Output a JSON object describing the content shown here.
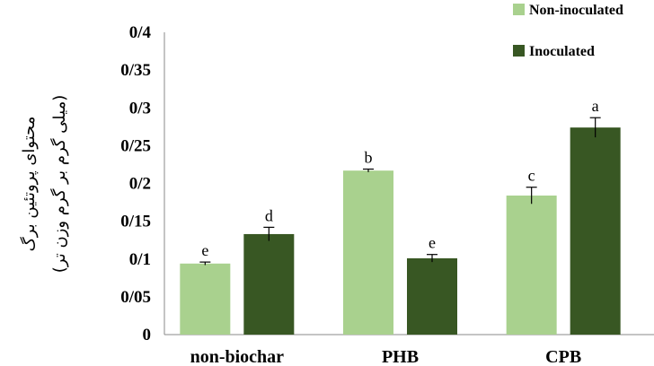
{
  "chart_data": {
    "type": "bar",
    "categories": [
      "non-biochar",
      "PHB",
      "CPB"
    ],
    "series": [
      {
        "name": "Non-inoculated",
        "color": "#a9d18e",
        "values": [
          0.094,
          0.217,
          0.184
        ],
        "errors": [
          0.002,
          0.002,
          0.011
        ],
        "letters": [
          "e",
          "b",
          "c"
        ]
      },
      {
        "name": "Inoculated",
        "color": "#385723",
        "values": [
          0.133,
          0.101,
          0.274
        ],
        "errors": [
          0.009,
          0.005,
          0.013
        ],
        "letters": [
          "d",
          "e",
          "a"
        ]
      }
    ],
    "ylim": [
      0,
      0.4
    ],
    "yticks": [
      {
        "value": 0,
        "label": "0"
      },
      {
        "value": 0.05,
        "label": "0/05"
      },
      {
        "value": 0.1,
        "label": "0/1"
      },
      {
        "value": 0.15,
        "label": "0/15"
      },
      {
        "value": 0.2,
        "label": "0/2"
      },
      {
        "value": 0.25,
        "label": "0/25"
      },
      {
        "value": 0.3,
        "label": "0/3"
      },
      {
        "value": 0.35,
        "label": "0/35"
      },
      {
        "value": 0.4,
        "label": "0/4"
      }
    ],
    "ylabel_line1": "محتوای پروتئین برگ",
    "ylabel_line2": "(میلی گرم بر گرم وزن تر)",
    "legend_position": "top-right",
    "grid": false
  }
}
